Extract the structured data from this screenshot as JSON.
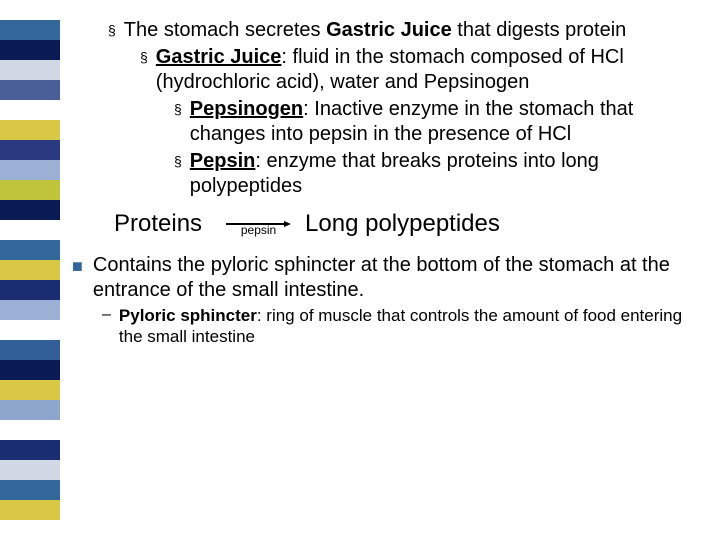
{
  "sidebar_colors": [
    "#ffffff",
    "#336699",
    "#0a1a55",
    "#cfd8e4",
    "#4a5f98",
    "#ffffff",
    "#d9c846",
    "#2a3a80",
    "#9bb0d4",
    "#c0c43a",
    "#0a1a55",
    "#ffffff",
    "#336699",
    "#d9c846",
    "#1a2d70",
    "#9bb0d4",
    "#ffffff",
    "#335f99",
    "#0a1a55",
    "#d9c846",
    "#8ea6cc",
    "#ffffff",
    "#1a2d70",
    "#cfd8e4",
    "#336699",
    "#d9c846",
    "#ffffff"
  ],
  "bullets": {
    "square": "§",
    "bigsquare": "■",
    "dash": "–"
  },
  "level1": {
    "pre": "The stomach secretes ",
    "bold": "Gastric Juice",
    "post": " that digests protein"
  },
  "level2": {
    "term": "Gastric Juice",
    "body": ": fluid in the stomach composed of HCl (hydrochloric acid), water and Pepsinogen"
  },
  "level3a": {
    "term": "Pepsinogen",
    "body": ": Inactive enzyme in the stomach that changes into pepsin in the presence of HCl"
  },
  "level3b": {
    "term": "Pepsin",
    "body": ": enzyme that breaks proteins into long polypeptides"
  },
  "reaction": {
    "left": "Proteins",
    "label": "pepsin",
    "right": "Long polypeptides"
  },
  "lower1": "Contains the pyloric sphincter at the bottom of the stomach at the entrance of the small intestine.",
  "lower2": {
    "term": "Pyloric sphincter",
    "body": ": ring of muscle that controls the amount of food entering the small intestine"
  }
}
